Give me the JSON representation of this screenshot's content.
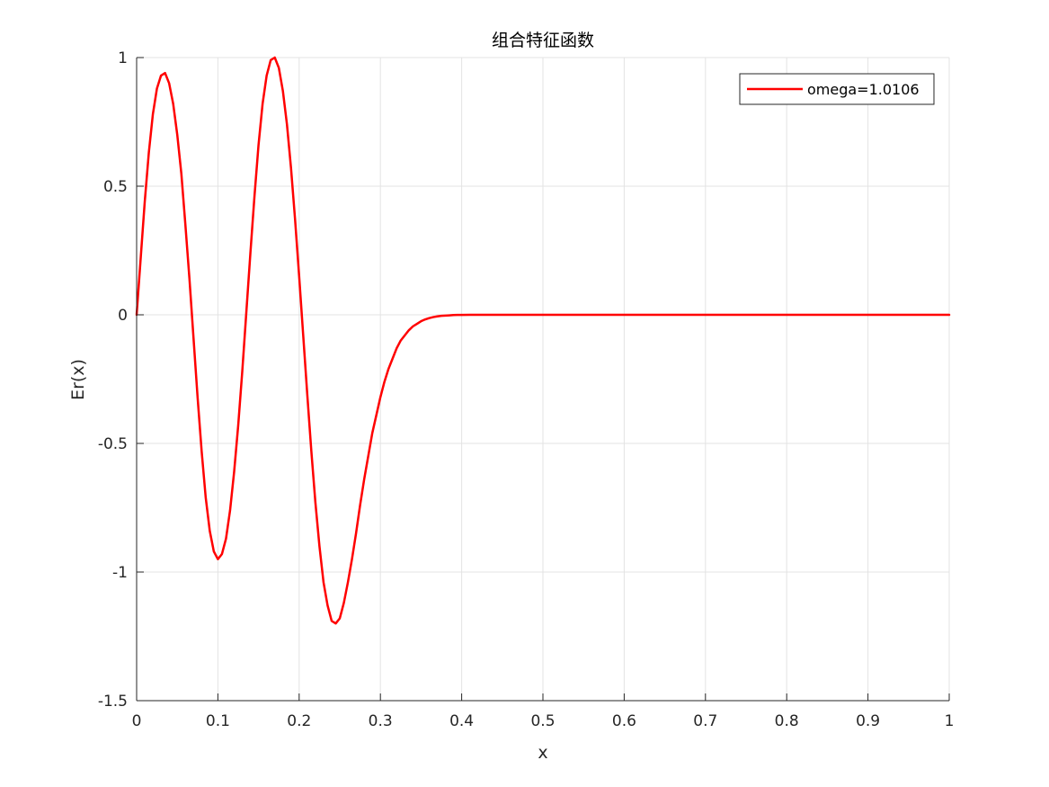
{
  "chart_data": {
    "type": "line",
    "title": "组合特征函数",
    "xlabel": "x",
    "ylabel": "Er(x)",
    "xlim": [
      0,
      1
    ],
    "ylim": [
      -1.5,
      1
    ],
    "xticks": [
      0,
      0.1,
      0.2,
      0.3,
      0.4,
      0.5,
      0.6,
      0.7,
      0.8,
      0.9,
      1
    ],
    "xtick_labels": [
      "0",
      "0.1",
      "0.2",
      "0.3",
      "0.4",
      "0.5",
      "0.6",
      "0.7",
      "0.8",
      "0.9",
      "1"
    ],
    "yticks": [
      -1.5,
      -1,
      -0.5,
      0,
      0.5,
      1
    ],
    "ytick_labels": [
      "-1.5",
      "-1",
      "-0.5",
      "0",
      "0.5",
      "1"
    ],
    "grid": true,
    "legend_position": "top-right",
    "series": [
      {
        "name": "omega=1.0106",
        "color": "#ff0000",
        "x": [
          0,
          0.005,
          0.01,
          0.015,
          0.02,
          0.025,
          0.03,
          0.035,
          0.04,
          0.045,
          0.05,
          0.055,
          0.06,
          0.065,
          0.07,
          0.075,
          0.08,
          0.085,
          0.09,
          0.095,
          0.1,
          0.105,
          0.11,
          0.115,
          0.12,
          0.125,
          0.13,
          0.135,
          0.14,
          0.145,
          0.15,
          0.155,
          0.16,
          0.165,
          0.17,
          0.175,
          0.18,
          0.185,
          0.19,
          0.195,
          0.2,
          0.205,
          0.21,
          0.215,
          0.22,
          0.225,
          0.23,
          0.235,
          0.24,
          0.245,
          0.25,
          0.255,
          0.26,
          0.265,
          0.27,
          0.275,
          0.28,
          0.285,
          0.29,
          0.295,
          0.3,
          0.305,
          0.31,
          0.315,
          0.32,
          0.325,
          0.33,
          0.335,
          0.34,
          0.345,
          0.35,
          0.355,
          0.36,
          0.365,
          0.37,
          0.375,
          0.38,
          0.385,
          0.39,
          0.395,
          0.4,
          0.41,
          0.42,
          0.43,
          0.44,
          0.45,
          0.46,
          0.47,
          0.48,
          0.49,
          0.5,
          0.55,
          0.6,
          0.65,
          0.7,
          0.75,
          0.8,
          0.85,
          0.9,
          0.95,
          1
        ],
        "y": [
          0,
          0.22,
          0.44,
          0.63,
          0.78,
          0.88,
          0.93,
          0.94,
          0.9,
          0.82,
          0.7,
          0.55,
          0.35,
          0.14,
          -0.09,
          -0.32,
          -0.53,
          -0.71,
          -0.84,
          -0.92,
          -0.95,
          -0.93,
          -0.87,
          -0.76,
          -0.61,
          -0.43,
          -0.22,
          0.01,
          0.24,
          0.46,
          0.66,
          0.82,
          0.93,
          0.99,
          1.0,
          0.96,
          0.87,
          0.74,
          0.57,
          0.37,
          0.15,
          -0.08,
          -0.31,
          -0.53,
          -0.73,
          -0.9,
          -1.04,
          -1.13,
          -1.19,
          -1.2,
          -1.18,
          -1.12,
          -1.04,
          -0.95,
          -0.85,
          -0.74,
          -0.64,
          -0.55,
          -0.46,
          -0.39,
          -0.32,
          -0.26,
          -0.21,
          -0.17,
          -0.13,
          -0.1,
          -0.08,
          -0.06,
          -0.045,
          -0.035,
          -0.025,
          -0.018,
          -0.013,
          -0.009,
          -0.006,
          -0.004,
          -0.003,
          -0.002,
          -0.001,
          -0.0005,
          -0.0003,
          -0.0002,
          -0.0001,
          0,
          0,
          0,
          0,
          0,
          0,
          0,
          0,
          0,
          0,
          0,
          0,
          0,
          0,
          0,
          0,
          0,
          0
        ]
      }
    ]
  }
}
